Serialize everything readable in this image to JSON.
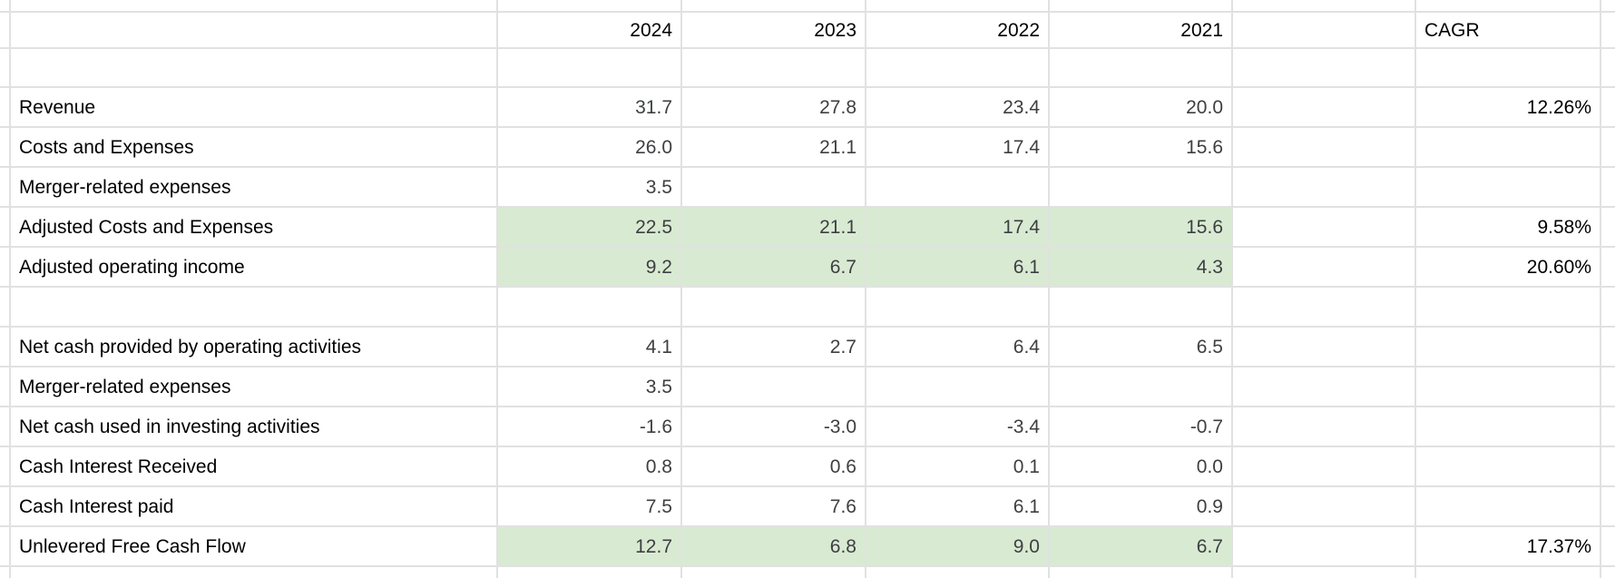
{
  "app": {
    "kind": "spreadsheet-table",
    "title": "Financial summary with CAGR"
  },
  "colors": {
    "background": "#ffffff",
    "grid_line": "#e1e1e1",
    "highlight_green": "#d9ead3",
    "label_text": "#000000",
    "number_text": "#3d3f41"
  },
  "columns": {
    "year_headers": [
      "2024",
      "2023",
      "2022",
      "2021"
    ],
    "cagr_header": "CAGR"
  },
  "rows": [
    {
      "label": "Revenue",
      "values": [
        "31.7",
        "27.8",
        "23.4",
        "20.0"
      ],
      "cagr": "12.26%",
      "highlight": false
    },
    {
      "label": "Costs and Expenses",
      "values": [
        "26.0",
        "21.1",
        "17.4",
        "15.6"
      ],
      "cagr": "",
      "highlight": false
    },
    {
      "label": "Merger-related expenses",
      "values": [
        "3.5",
        "",
        "",
        ""
      ],
      "cagr": "",
      "highlight": false
    },
    {
      "label": "Adjusted Costs and Expenses",
      "values": [
        "22.5",
        "21.1",
        "17.4",
        "15.6"
      ],
      "cagr": "9.58%",
      "highlight": true
    },
    {
      "label": "Adjusted operating income",
      "values": [
        "9.2",
        "6.7",
        "6.1",
        "4.3"
      ],
      "cagr": "20.60%",
      "highlight": true
    },
    {
      "label": "",
      "values": [
        "",
        "",
        "",
        ""
      ],
      "cagr": "",
      "highlight": false
    },
    {
      "label": "Net cash provided by operating activities",
      "values": [
        "4.1",
        "2.7",
        "6.4",
        "6.5"
      ],
      "cagr": "",
      "highlight": false
    },
    {
      "label": "Merger-related expenses",
      "values": [
        "3.5",
        "",
        "",
        ""
      ],
      "cagr": "",
      "highlight": false
    },
    {
      "label": "Net cash used in investing activities",
      "values": [
        "-1.6",
        "-3.0",
        "-3.4",
        "-0.7"
      ],
      "cagr": "",
      "highlight": false
    },
    {
      "label": "Cash Interest Received",
      "values": [
        "0.8",
        "0.6",
        "0.1",
        "0.0"
      ],
      "cagr": "",
      "highlight": false
    },
    {
      "label": "Cash Interest paid",
      "values": [
        "7.5",
        "7.6",
        "6.1",
        "0.9"
      ],
      "cagr": "",
      "highlight": false
    },
    {
      "label": "Unlevered Free Cash Flow",
      "values": [
        "12.7",
        "6.8",
        "9.0",
        "6.7"
      ],
      "cagr": "17.37%",
      "highlight": true
    }
  ]
}
